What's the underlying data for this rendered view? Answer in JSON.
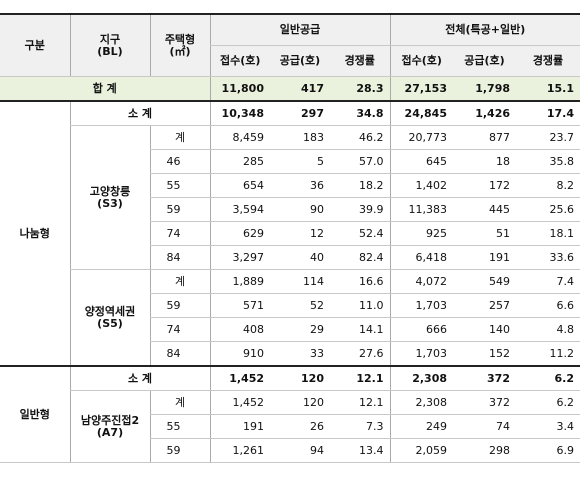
{
  "header": {
    "col_group": "구분",
    "col_district": [
      "지구",
      "(BL)"
    ],
    "col_type": [
      "주택형",
      "(㎡)"
    ],
    "groups": [
      "일반공급",
      "전체(특공+일반)"
    ],
    "subcols": [
      "접수(호)",
      "공급(호)",
      "경쟁률"
    ]
  },
  "total": {
    "label": "합 계",
    "values": [
      "11,800",
      "417",
      "28.3",
      "27,153",
      "1,798",
      "15.1"
    ]
  },
  "sections": [
    {
      "name": "나눔형",
      "subtotal": {
        "label": "소 계",
        "values": [
          "10,348",
          "297",
          "34.8",
          "24,845",
          "1,426",
          "17.4"
        ]
      },
      "districts": [
        {
          "name": "고양창릉",
          "code": "(S3)",
          "rows": [
            {
              "type": "계",
              "values": [
                "8,459",
                "183",
                "46.2",
                "20,773",
                "877",
                "23.7"
              ]
            },
            {
              "type": "46",
              "values": [
                "285",
                "5",
                "57.0",
                "645",
                "18",
                "35.8"
              ]
            },
            {
              "type": "55",
              "values": [
                "654",
                "36",
                "18.2",
                "1,402",
                "172",
                "8.2"
              ]
            },
            {
              "type": "59",
              "values": [
                "3,594",
                "90",
                "39.9",
                "11,383",
                "445",
                "25.6"
              ]
            },
            {
              "type": "74",
              "values": [
                "629",
                "12",
                "52.4",
                "925",
                "51",
                "18.1"
              ]
            },
            {
              "type": "84",
              "values": [
                "3,297",
                "40",
                "82.4",
                "6,418",
                "191",
                "33.6"
              ]
            }
          ]
        },
        {
          "name": "양정역세권",
          "code": "(S5)",
          "rows": [
            {
              "type": "계",
              "values": [
                "1,889",
                "114",
                "16.6",
                "4,072",
                "549",
                "7.4"
              ]
            },
            {
              "type": "59",
              "values": [
                "571",
                "52",
                "11.0",
                "1,703",
                "257",
                "6.6"
              ]
            },
            {
              "type": "74",
              "values": [
                "408",
                "29",
                "14.1",
                "666",
                "140",
                "4.8"
              ]
            },
            {
              "type": "84",
              "values": [
                "910",
                "33",
                "27.6",
                "1,703",
                "152",
                "11.2"
              ]
            }
          ]
        }
      ]
    },
    {
      "name": "일반형",
      "subtotal": {
        "label": "소 계",
        "values": [
          "1,452",
          "120",
          "12.1",
          "2,308",
          "372",
          "6.2"
        ]
      },
      "districts": [
        {
          "name": "남양주진접2",
          "code": "(A7)",
          "rows": [
            {
              "type": "계",
              "values": [
                "1,452",
                "120",
                "12.1",
                "2,308",
                "372",
                "6.2"
              ]
            },
            {
              "type": "55",
              "values": [
                "191",
                "26",
                "7.3",
                "249",
                "74",
                "3.4"
              ]
            },
            {
              "type": "59",
              "values": [
                "1,261",
                "94",
                "13.4",
                "2,059",
                "298",
                "6.9"
              ]
            }
          ]
        }
      ]
    }
  ]
}
